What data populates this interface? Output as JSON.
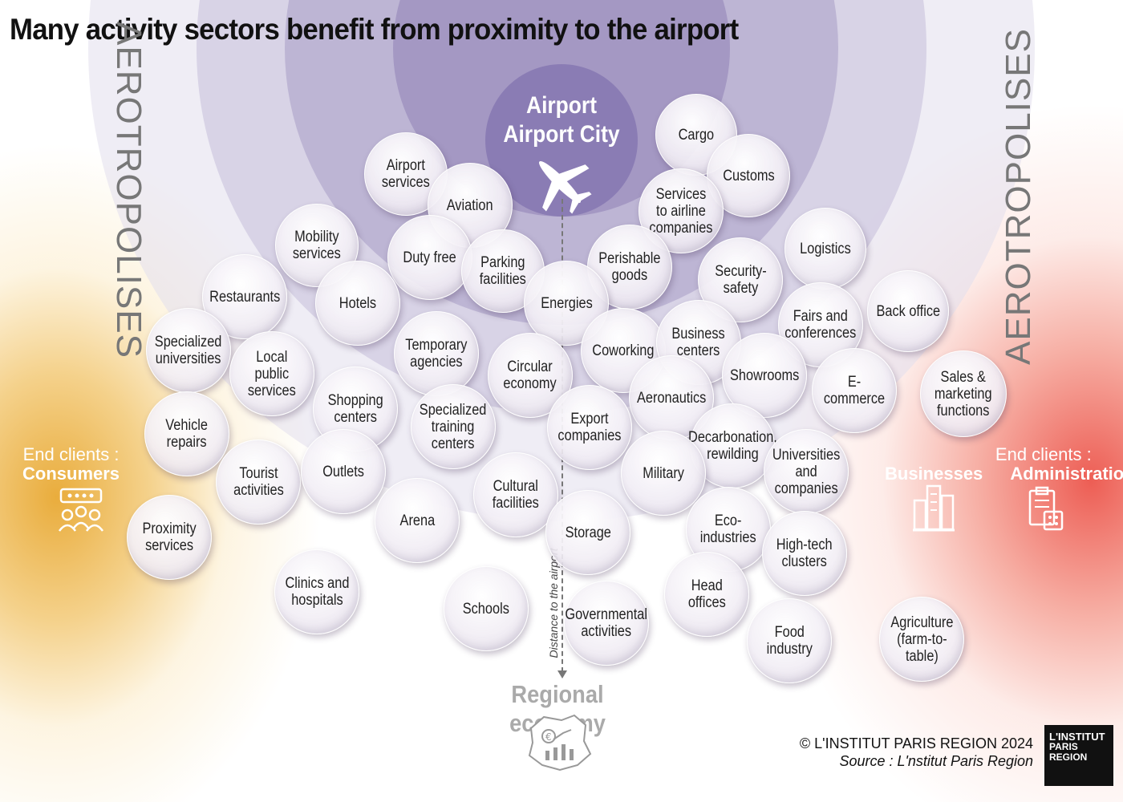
{
  "title": "Many activity sectors benefit from proximity to the airport",
  "hub": {
    "line1": "Airport",
    "line2": "Airport City",
    "icon": "airplane-icon"
  },
  "aerotropolises_label": "AEROTROPOLISES",
  "distance_label": "Distance to the airport",
  "regional_economy": "Regional economy",
  "end_clients": {
    "consumers": {
      "prefix": "End clients :",
      "label": "Consumers",
      "icon": "consumers-icon"
    },
    "businesses": {
      "prefix": "End clients :",
      "label": "Businesses",
      "icon": "buildings-icon"
    },
    "administration": {
      "label": "Administration",
      "icon": "clipboard-icon"
    }
  },
  "sectors": [
    {
      "id": "cargo",
      "label": "Cargo"
    },
    {
      "id": "customs",
      "label": "Customs"
    },
    {
      "id": "services-airline",
      "label": "Services\nto airline\ncompanies"
    },
    {
      "id": "airport-services",
      "label": "Airport\nservices"
    },
    {
      "id": "aviation",
      "label": "Aviation"
    },
    {
      "id": "mobility",
      "label": "Mobility\nservices"
    },
    {
      "id": "duty-free",
      "label": "Duty free"
    },
    {
      "id": "parking",
      "label": "Parking\nfacilities"
    },
    {
      "id": "perishable",
      "label": "Perishable\ngoods"
    },
    {
      "id": "logistics",
      "label": "Logistics"
    },
    {
      "id": "security",
      "label": "Security-\nsafety"
    },
    {
      "id": "energies",
      "label": "Energies"
    },
    {
      "id": "restaurants",
      "label": "Restaurants"
    },
    {
      "id": "hotels",
      "label": "Hotels"
    },
    {
      "id": "fairs",
      "label": "Fairs and\nconferences"
    },
    {
      "id": "back-office",
      "label": "Back office"
    },
    {
      "id": "specialized-universities",
      "label": "Specialized\nuniversities"
    },
    {
      "id": "local-public",
      "label": "Local\npublic\nservices"
    },
    {
      "id": "temporary",
      "label": "Temporary\nagencies"
    },
    {
      "id": "coworking",
      "label": "Coworking"
    },
    {
      "id": "business-centers",
      "label": "Business\ncenters"
    },
    {
      "id": "circular",
      "label": "Circular\neconomy"
    },
    {
      "id": "showrooms",
      "label": "Showrooms"
    },
    {
      "id": "sales-marketing",
      "label": "Sales &\nmarketing\nfunctions"
    },
    {
      "id": "ecommerce",
      "label": "E-commerce"
    },
    {
      "id": "aeronautics",
      "label": "Aeronautics"
    },
    {
      "id": "shopping",
      "label": "Shopping\ncenters"
    },
    {
      "id": "vehicle",
      "label": "Vehicle\nrepairs"
    },
    {
      "id": "specialized-training",
      "label": "Specialized\ntraining\ncenters"
    },
    {
      "id": "export",
      "label": "Export\ncompanies"
    },
    {
      "id": "decarbonation",
      "label": "Decarbonation,\nrewilding"
    },
    {
      "id": "universities-companies",
      "label": "Universities\nand\ncompanies"
    },
    {
      "id": "tourist",
      "label": "Tourist\nactivities"
    },
    {
      "id": "outlets",
      "label": "Outlets"
    },
    {
      "id": "military",
      "label": "Military"
    },
    {
      "id": "cultural",
      "label": "Cultural\nfacilities"
    },
    {
      "id": "arena",
      "label": "Arena"
    },
    {
      "id": "proximity",
      "label": "Proximity\nservices"
    },
    {
      "id": "storage",
      "label": "Storage"
    },
    {
      "id": "eco-industries",
      "label": "Eco-\nindustries"
    },
    {
      "id": "high-tech",
      "label": "High-tech\nclusters"
    },
    {
      "id": "clinics",
      "label": "Clinics and\nhospitals"
    },
    {
      "id": "head-offices",
      "label": "Head\noffices"
    },
    {
      "id": "schools",
      "label": "Schools"
    },
    {
      "id": "governmental",
      "label": "Governmental\nactivities"
    },
    {
      "id": "agriculture",
      "label": "Agriculture\n(farm-to-\ntable)"
    },
    {
      "id": "food-industry",
      "label": "Food\nindustry"
    }
  ],
  "credits": {
    "copyright": "© L'INSTITUT PARIS REGION 2024",
    "source": "Source : L'nstitut Paris Region"
  },
  "logo": {
    "line1": "L'INSTITUT",
    "line2": "PARIS",
    "line3": "REGION"
  }
}
